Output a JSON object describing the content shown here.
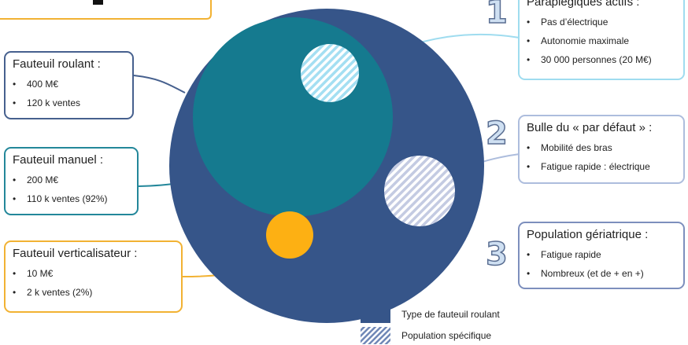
{
  "colors": {
    "outer_circle": "#365589",
    "inner_circle": "#157a8f",
    "small_circle": "#fdb013",
    "hatch_light_blue": "#a4dff2",
    "hatch_grey": "#c4cbe2",
    "border_dark_blue": "#46608e",
    "border_teal": "#23879a",
    "border_orange": "#f2b233",
    "border_light_blue": "#9fdcef",
    "border_grey_blue": "#adbddd"
  },
  "left_boxes": [
    {
      "title": "Fauteuil roulant :",
      "items": [
        "400 M€",
        "120 k ventes"
      ]
    },
    {
      "title": "Fauteuil manuel :",
      "items": [
        "200 M€",
        "110 k ventes (92%)"
      ]
    },
    {
      "title": "Fauteuil verticalisateur :",
      "items": [
        "10 M€",
        "2 k ventes (2%)"
      ]
    }
  ],
  "right_boxes": [
    {
      "number": "1",
      "title": "Paraplégiques actifs :",
      "items": [
        "Pas d’électrique",
        "Autonomie maximale",
        "30 000 personnes (20 M€)"
      ]
    },
    {
      "number": "2",
      "title": "Bulle du « par défaut » :",
      "items": [
        "Mobilité des bras",
        "Fatigue rapide : électrique"
      ]
    },
    {
      "number": "3",
      "title": "Population gériatrique :",
      "items": [
        "Fatigue rapide",
        "Nombreux (et de + en +)"
      ]
    }
  ],
  "legend": [
    {
      "label": "Type de fauteuil roulant",
      "icon": "solid-swatch"
    },
    {
      "label": "Population spécifique",
      "icon": "hatched-swatch"
    }
  ]
}
